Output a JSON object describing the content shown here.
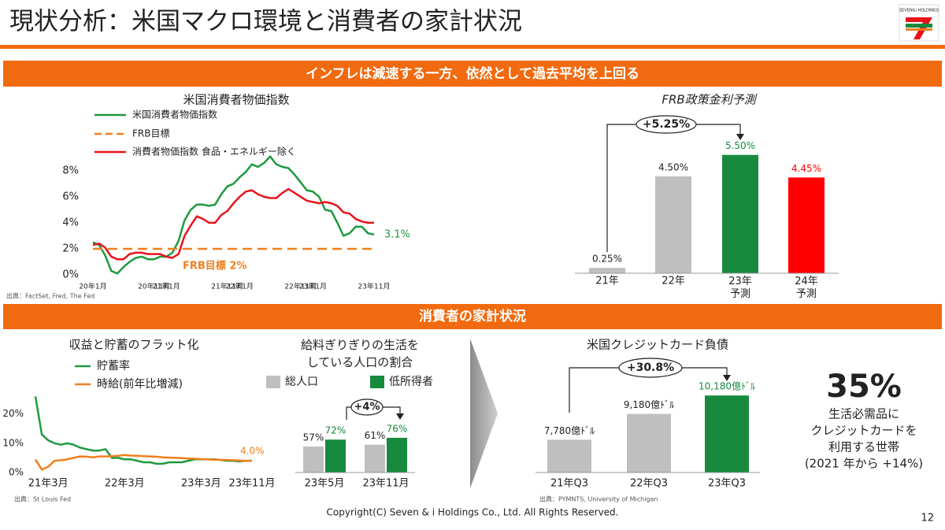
{
  "title": "現状分析：米国マクロ環境と消費者の家計状況",
  "logo": "SEVEN&i HOLDINGS",
  "banners": [
    "インフレは減速する一方、依然として過去平均を上回る",
    "消費者の家計状況"
  ],
  "chart_data": [
    {
      "type": "line",
      "title": "米国消費者物価指数",
      "categories": [
        "20年1月",
        null,
        null,
        null,
        null,
        null,
        null,
        null,
        null,
        null,
        "20年11月",
        null,
        "21年1月",
        null,
        null,
        null,
        null,
        null,
        null,
        null,
        null,
        null,
        "21年11月",
        null,
        "22年1月",
        null,
        null,
        null,
        null,
        null,
        null,
        null,
        null,
        null,
        "22年11月",
        null,
        "23年1月",
        null,
        null,
        null,
        null,
        null,
        null,
        null,
        null,
        null,
        "23年11月"
      ],
      "series": [
        {
          "name": "米国消費者物価指数",
          "color": "#1e9a3e",
          "values": [
            2.5,
            2.3,
            1.5,
            0.3,
            0.1,
            0.6,
            1.0,
            1.3,
            1.4,
            1.2,
            1.2,
            1.4,
            1.4,
            1.7,
            2.6,
            4.2,
            5.0,
            5.4,
            5.4,
            5.3,
            5.4,
            6.2,
            6.8,
            7.0,
            7.5,
            7.9,
            8.5,
            8.3,
            8.6,
            9.1,
            8.5,
            8.3,
            8.2,
            7.7,
            7.1,
            6.5,
            6.4,
            6.0,
            5.0,
            4.9,
            4.0,
            3.0,
            3.2,
            3.7,
            3.7,
            3.2,
            3.1
          ]
        },
        {
          "name": "FRB目標",
          "color": "#f07f1e",
          "dash": true,
          "values": [
            2,
            2,
            2,
            2,
            2,
            2,
            2,
            2,
            2,
            2,
            2,
            2,
            2,
            2,
            2,
            2,
            2,
            2,
            2,
            2,
            2,
            2,
            2,
            2,
            2,
            2,
            2,
            2,
            2,
            2,
            2,
            2,
            2,
            2,
            2,
            2,
            2,
            2,
            2,
            2,
            2,
            2,
            2,
            2,
            2,
            2,
            2
          ]
        },
        {
          "name": "消費者物価指数 食品・エネルギー除く",
          "color": "#e8121a",
          "values": [
            2.3,
            2.4,
            2.1,
            1.4,
            1.2,
            1.2,
            1.6,
            1.7,
            1.7,
            1.6,
            1.6,
            1.6,
            1.4,
            1.3,
            1.6,
            3.0,
            3.8,
            4.5,
            4.3,
            4.0,
            4.0,
            4.6,
            4.9,
            5.5,
            6.0,
            6.4,
            6.5,
            6.2,
            6.0,
            5.9,
            5.9,
            6.3,
            6.6,
            6.3,
            6.0,
            5.7,
            5.6,
            5.5,
            5.6,
            5.5,
            5.3,
            4.8,
            4.7,
            4.3,
            4.1,
            4.0,
            4.0
          ]
        }
      ],
      "ylim": [
        0,
        9.2
      ],
      "yticks": [
        {
          "value": 0,
          "label": "0%"
        },
        {
          "value": 2,
          "label": "2%"
        },
        {
          "value": 4,
          "label": "4%"
        },
        {
          "value": 6,
          "label": "6%"
        },
        {
          "value": 8,
          "label": "8%"
        }
      ],
      "annotations": [
        {
          "text": "3.1%",
          "color": "#1e9a3e"
        },
        {
          "text": "FRB目標 2%",
          "color": "#f07f1e"
        }
      ],
      "source": "出典：FactSet, Fred, The Fed"
    },
    {
      "type": "bar",
      "title": "FRB政策金利予測",
      "categories": [
        "21年",
        "22年",
        "23年\n予測",
        "24年\n予測"
      ],
      "values": [
        0.25,
        4.5,
        5.5,
        4.45
      ],
      "value_labels": [
        "0.25%",
        "4.50%",
        "5.50%",
        "4.45%"
      ],
      "colors": [
        "#bfbfbf",
        "#bfbfbf",
        "#178a3e",
        "#ff0000"
      ],
      "label_colors": [
        "#222222",
        "#222222",
        "#178a3e",
        "#ff0000"
      ],
      "ylim": [
        0,
        6
      ],
      "annotations": [
        {
          "text": "+5.25%",
          "color": "#222222"
        }
      ]
    },
    {
      "type": "line",
      "title": "収益と貯蓄のフラット化",
      "categories": [
        null,
        null,
        "21年3月",
        null,
        null,
        null,
        null,
        null,
        null,
        null,
        null,
        null,
        null,
        null,
        "22年3月",
        null,
        null,
        null,
        null,
        null,
        null,
        null,
        null,
        null,
        null,
        null,
        "23年3月",
        null,
        null,
        null,
        null,
        null,
        null,
        null,
        "23年11月"
      ],
      "series": [
        {
          "name": "貯蓄率",
          "color": "#1e9a3e",
          "values": [
            26,
            13,
            11,
            10,
            9.5,
            10,
            9.5,
            8.5,
            8,
            7.5,
            7.5,
            8,
            5,
            5,
            4.5,
            4.5,
            4,
            3.5,
            3.5,
            3,
            3,
            3.5,
            3.5,
            3.5,
            4,
            4.5,
            4.5,
            4.5,
            4.5,
            4.3,
            4,
            4,
            3.8,
            4,
            4
          ]
        },
        {
          "name": "時給(前年比増減)",
          "color": "#f07f1e",
          "values": [
            4.5,
            1,
            2,
            4,
            4.2,
            4.5,
            5,
            5.5,
            5.4,
            5.2,
            5.5,
            5.5,
            5.6,
            5.7,
            6,
            5.8,
            5.7,
            5.6,
            5.5,
            5.4,
            5.2,
            5.1,
            5,
            4.9,
            4.8,
            4.7,
            4.6,
            4.5,
            4.4,
            4.3,
            4.3,
            4.2,
            4.1,
            4.0,
            4.0
          ]
        }
      ],
      "ylim": [
        0,
        28
      ],
      "yticks": [
        {
          "value": 0,
          "label": "0%"
        },
        {
          "value": 10,
          "label": "10%"
        },
        {
          "value": 20,
          "label": "20%"
        }
      ],
      "annotations": [
        {
          "text": "4.0%",
          "color": "#f07f1e"
        }
      ],
      "source": "出典：St Louis Fed"
    },
    {
      "type": "bar",
      "title": "給料ぎりぎりの生活を\nしている人口の割合",
      "categories": [
        "23年5月",
        "23年11月"
      ],
      "series": [
        {
          "name": "総人口",
          "color": "#bfbfbf",
          "label_color": "#222222",
          "values": [
            57,
            61
          ],
          "value_labels": [
            "57%",
            "61%"
          ]
        },
        {
          "name": "低所得者",
          "color": "#178a3e",
          "label_color": "#178a3e",
          "values": [
            72,
            76
          ],
          "value_labels": [
            "72%",
            "76%"
          ]
        }
      ],
      "ylim": [
        0,
        100
      ],
      "annotations": [
        {
          "text": "+4%",
          "color": "#222222"
        }
      ]
    },
    {
      "type": "bar",
      "title": "米国クレジットカード負債",
      "categories": [
        "21年Q3",
        "22年Q3",
        "23年Q3"
      ],
      "values": [
        7780,
        9180,
        10180
      ],
      "value_labels": [
        "7,780億ﾄﾞﾙ",
        "9,180億ﾄﾞﾙ",
        "10,180億ﾄﾞﾙ"
      ],
      "colors": [
        "#bfbfbf",
        "#bfbfbf",
        "#178a3e"
      ],
      "label_colors": [
        "#222222",
        "#222222",
        "#178a3e"
      ],
      "ylim": [
        6000,
        11000
      ],
      "annotations": [
        {
          "text": "+30.8%",
          "color": "#222222"
        }
      ],
      "source": "出典：PYMNTS, University of Michigan"
    }
  ],
  "stat": {
    "value": "35%",
    "lines": [
      "生活必需品に",
      "クレジットカードを",
      "利用する世帯",
      "(2021 年から +14%)"
    ]
  },
  "footer": {
    "copyright": "Copyright(C) Seven & i Holdings Co., Ltd. All Rights Reserved.",
    "page": 12
  }
}
